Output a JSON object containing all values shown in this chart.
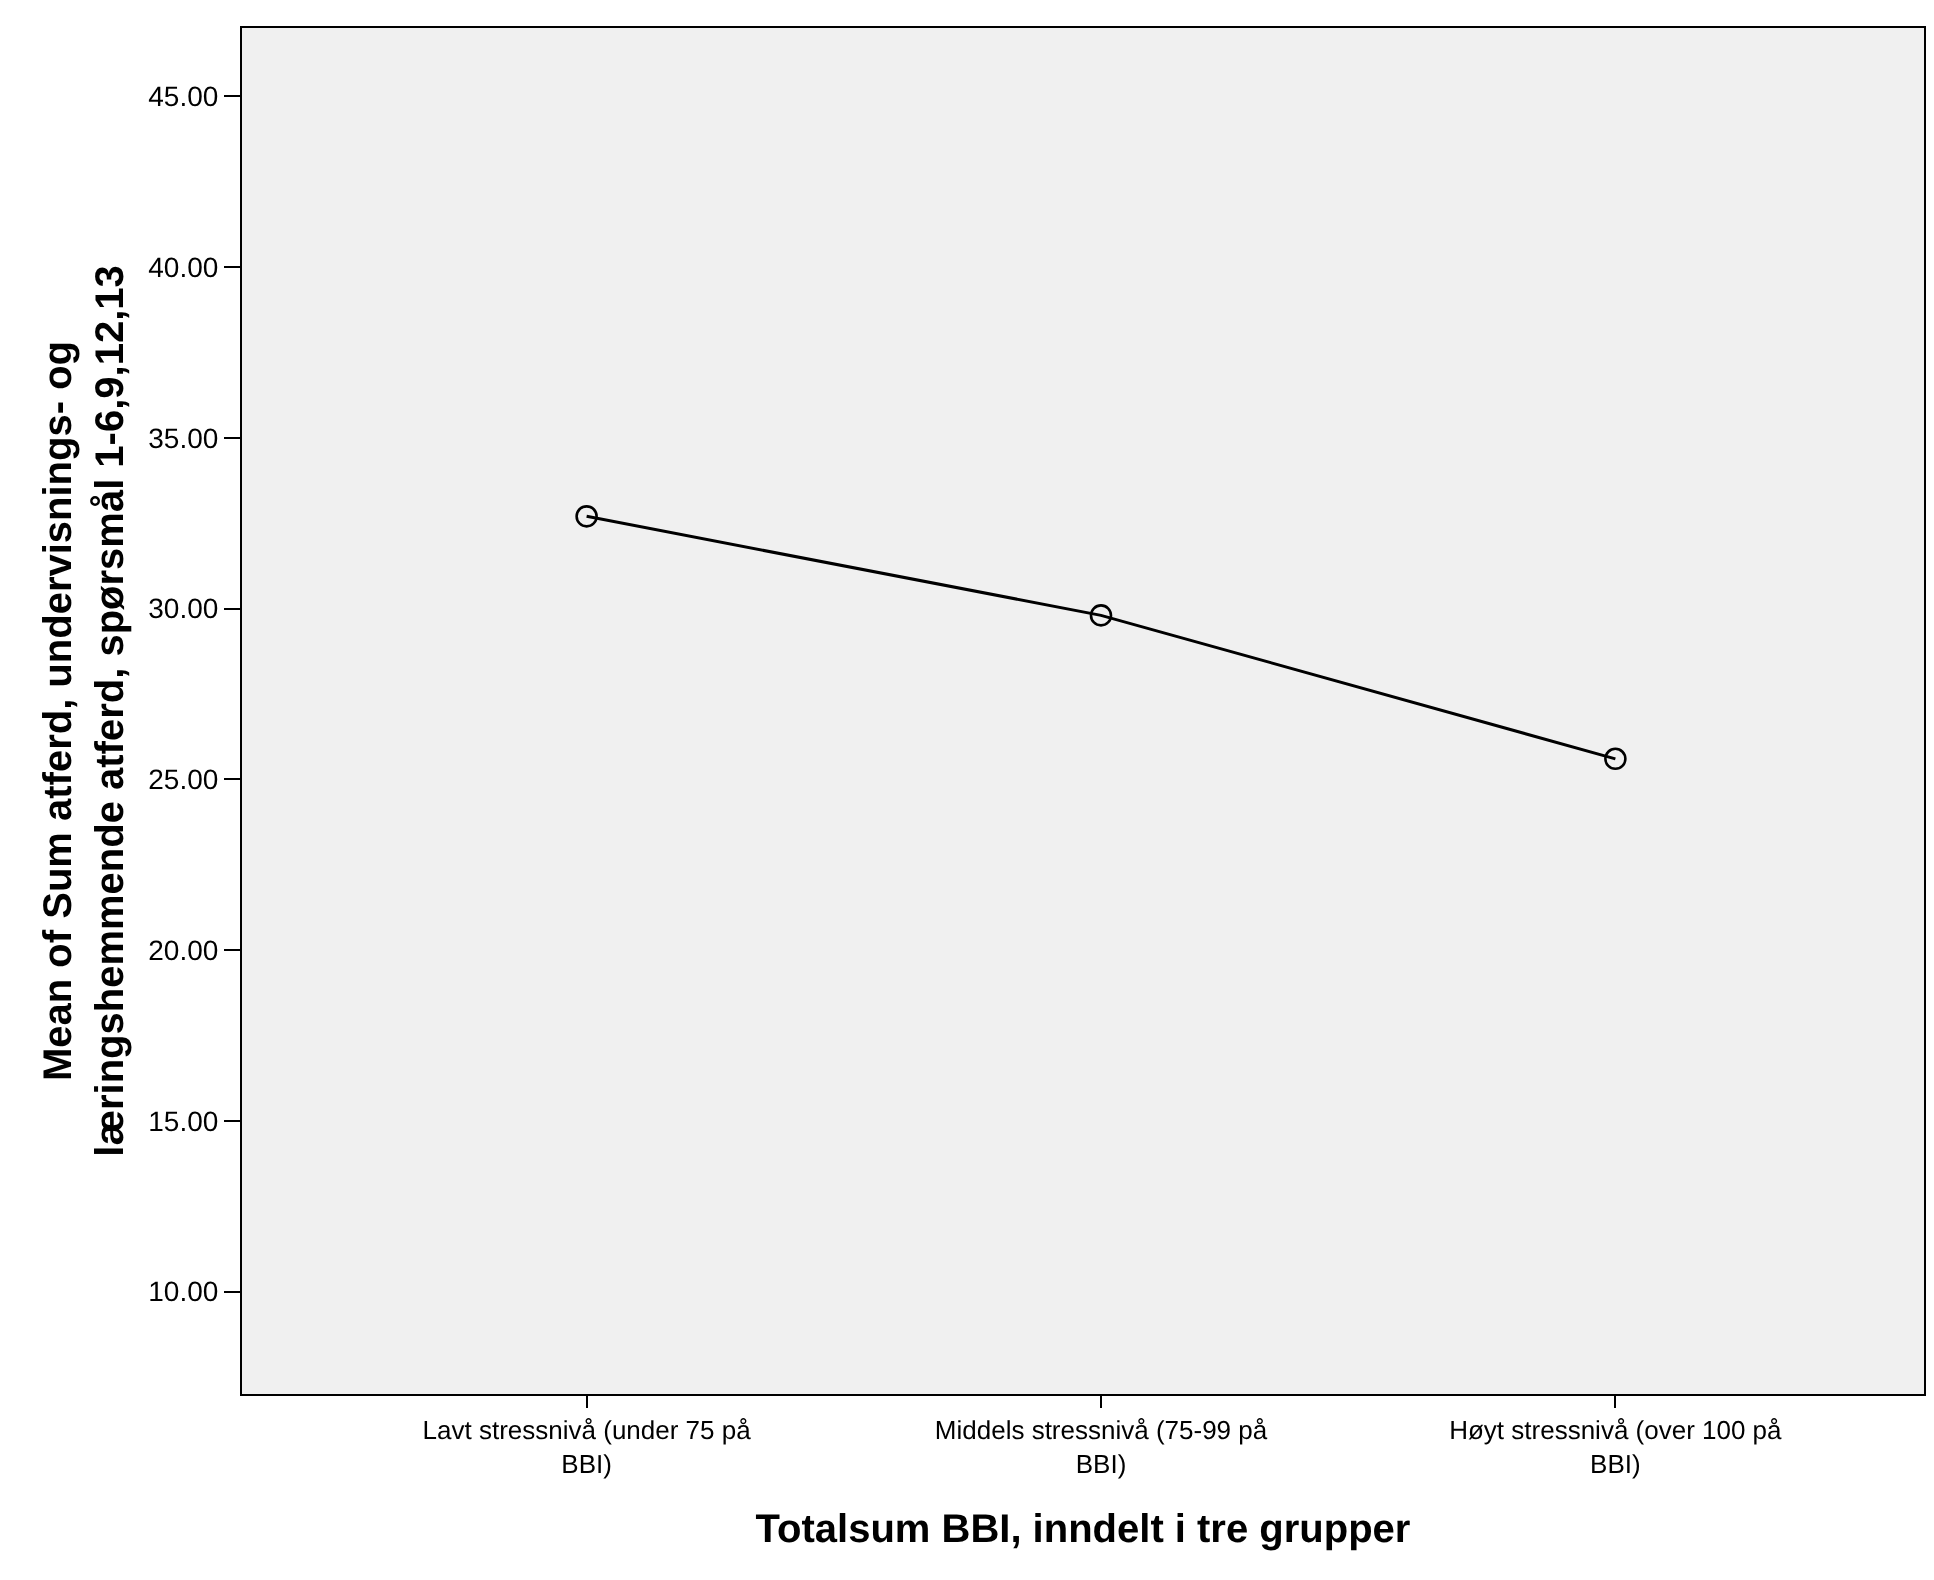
{
  "chart_data": {
    "type": "line",
    "xlabel": "Totalsum BBI, inndelt i tre grupper",
    "ylabel": "Mean of Sum atferd, undervisnings- og læringshemmende atferd, spørsmål 1-6,9,12,13",
    "categories": [
      "Lavt stressnivå (under 75 på BBI)",
      "Middels stressnivå (75-99 på BBI)",
      "Høyt stressnivå (over 100 på BBI)"
    ],
    "series": [
      {
        "color": "#000000",
        "values": [
          32.7,
          29.8,
          25.6
        ]
      }
    ],
    "ylim": [
      7,
      47
    ],
    "yticks": [
      {
        "value": 10,
        "label": "10.00"
      },
      {
        "value": 15,
        "label": "15.00"
      },
      {
        "value": 20,
        "label": "20.00"
      },
      {
        "value": 25,
        "label": "25.00"
      },
      {
        "value": 30,
        "label": "30.00"
      },
      {
        "value": 35,
        "label": "35.00"
      },
      {
        "value": 40,
        "label": "40.00"
      },
      {
        "value": 45,
        "label": "45.00"
      }
    ],
    "grid": false,
    "marker": "circle",
    "line_style": "solid"
  }
}
